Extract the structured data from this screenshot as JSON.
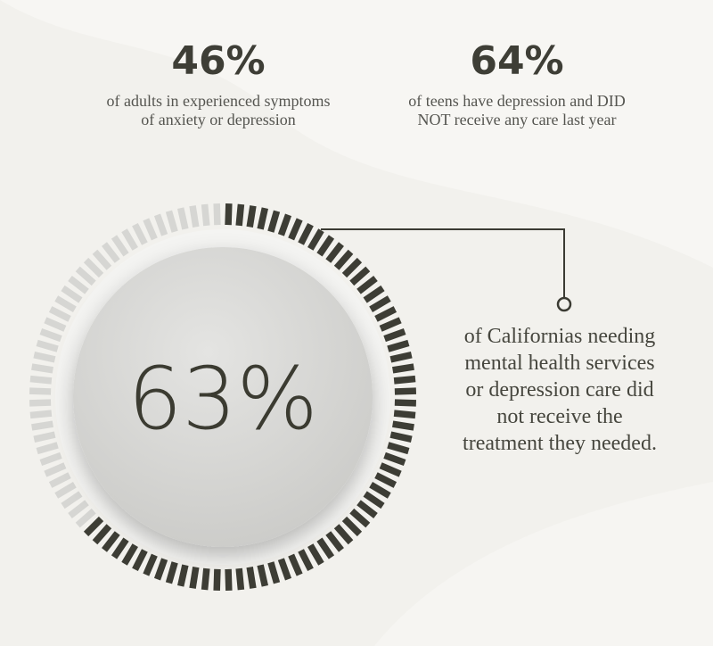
{
  "stats": [
    {
      "value": "46%",
      "caption": [
        "of adults in experienced symptoms",
        "of anxiety or depression"
      ]
    },
    {
      "value": "64%",
      "caption": [
        "of teens have depression and DID",
        "NOT receive any care last year"
      ]
    }
  ],
  "main": {
    "percent": {
      "value": 63,
      "label": "63%"
    },
    "caption": [
      "of Californias needing",
      "mental health services",
      "or depression care did",
      "not receive the",
      "treatment they needed."
    ]
  }
}
